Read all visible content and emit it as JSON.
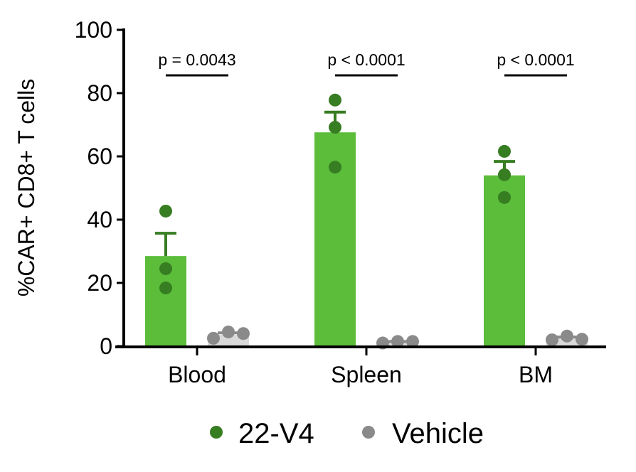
{
  "chart_data": {
    "type": "bar",
    "title": "",
    "xlabel": "",
    "ylabel": "%CAR+ CD8+ T cells",
    "ylim": [
      0,
      100
    ],
    "yticks": [
      0,
      20,
      40,
      60,
      80,
      100
    ],
    "ytick_labels": [
      "0",
      "20",
      "40",
      "60",
      "80",
      "100"
    ],
    "grid": false,
    "categories": [
      "Blood",
      "Spleen",
      "BM"
    ],
    "series": [
      {
        "name": "22-V4",
        "bar_color": "#5bbd3a",
        "point_color": "#377d22",
        "values": [
          28.5,
          67.6,
          54
        ],
        "sem": [
          7.2,
          6.4,
          4.4
        ],
        "points": [
          [
            42.7,
            24.5,
            18.4
          ],
          [
            77.8,
            69.2,
            56.6
          ],
          [
            61.6,
            54.2,
            47
          ]
        ]
      },
      {
        "name": "Vehicle",
        "bar_color": "#d9d9d9",
        "point_color": "#8a8a8a",
        "values": [
          3.6,
          1.3,
          2.5
        ],
        "sem": [
          0.6,
          0.2,
          0.4
        ],
        "points": [
          [
            2.5,
            4.5,
            4.0
          ],
          [
            1.0,
            1.5,
            1.5
          ],
          [
            2.0,
            3.2,
            2.2
          ]
        ]
      }
    ],
    "annotations": [
      "p = 0.0043",
      "p < 0.0001",
      "p < 0.0001"
    ],
    "legend": {
      "placement": "bottom",
      "entries": [
        "22-V4",
        "Vehicle"
      ]
    }
  }
}
